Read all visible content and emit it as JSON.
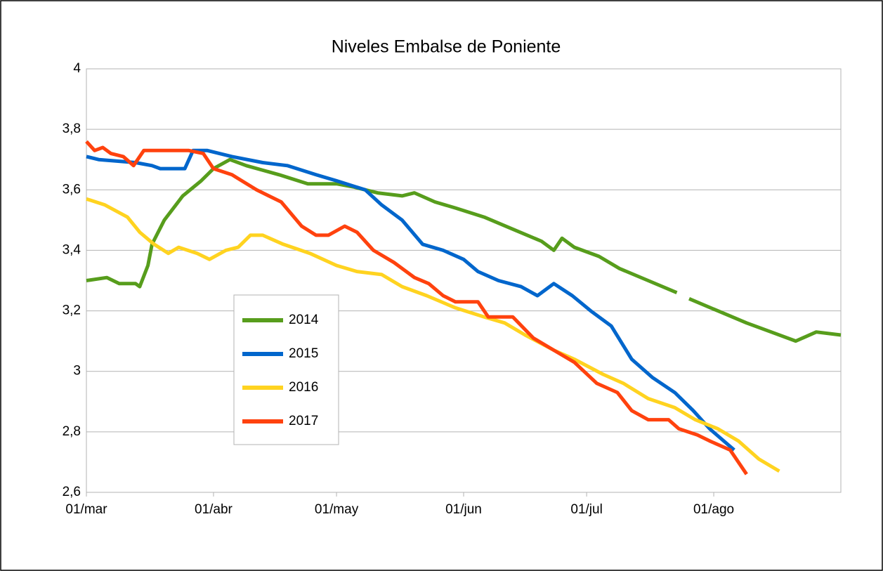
{
  "chart_data": {
    "type": "line",
    "title": "Niveles Embalse de Poniente",
    "xlim": [
      0,
      184
    ],
    "xticks": [
      {
        "value": 0,
        "label": "01/mar"
      },
      {
        "value": 31,
        "label": "01/abr"
      },
      {
        "value": 61,
        "label": "01/may"
      },
      {
        "value": 92,
        "label": "01/jun"
      },
      {
        "value": 122,
        "label": "01/jul"
      },
      {
        "value": 153,
        "label": "01/ago"
      }
    ],
    "ylim": [
      2.6,
      4
    ],
    "yticks": [
      {
        "value": 2.6,
        "label": "2,6"
      },
      {
        "value": 2.8,
        "label": "2,8"
      },
      3,
      {
        "value": 3.2,
        "label": "3,2"
      },
      {
        "value": 3.4,
        "label": "3,4"
      },
      {
        "value": 3.6,
        "label": "3,6"
      },
      {
        "value": 3.8,
        "label": "3,8"
      },
      4
    ],
    "grid": true,
    "series": [
      {
        "name": "2014",
        "color": "#579d1c",
        "x": [
          0,
          5,
          8,
          12,
          13,
          15,
          16,
          19,
          23.5,
          28,
          31,
          35,
          39,
          47,
          54,
          61,
          65,
          71,
          77,
          80,
          85,
          90,
          97,
          104,
          111,
          114,
          116,
          119,
          125,
          130,
          137,
          144,
          145.5,
          147,
          154,
          161,
          167,
          173,
          178,
          184
        ],
        "values": [
          3.3,
          3.31,
          3.29,
          3.29,
          3.28,
          3.35,
          3.42,
          3.5,
          3.58,
          3.63,
          3.67,
          3.7,
          3.68,
          3.65,
          3.62,
          3.62,
          3.61,
          3.59,
          3.58,
          3.59,
          3.56,
          3.54,
          3.51,
          3.47,
          3.43,
          3.4,
          3.44,
          3.41,
          3.38,
          3.34,
          3.3,
          3.26,
          null,
          3.24,
          3.2,
          3.16,
          3.13,
          3.1,
          3.13,
          3.12
        ]
      },
      {
        "name": "2015",
        "color": "#0066cc",
        "x": [
          0,
          3,
          12,
          16,
          18,
          24,
          26,
          29.5,
          35.5,
          43,
          49,
          56,
          61,
          68,
          72,
          77,
          82,
          87,
          92,
          95.5,
          100.5,
          106,
          110,
          114,
          118.5,
          123,
          128,
          133,
          138,
          143.5,
          148,
          152,
          158
        ],
        "values": [
          3.71,
          3.7,
          3.69,
          3.68,
          3.67,
          3.67,
          3.73,
          3.73,
          3.71,
          3.69,
          3.68,
          3.65,
          3.63,
          3.6,
          3.55,
          3.5,
          3.42,
          3.4,
          3.37,
          3.33,
          3.3,
          3.28,
          3.25,
          3.29,
          3.25,
          3.2,
          3.15,
          3.04,
          2.98,
          2.93,
          2.87,
          2.81,
          2.74
        ]
      },
      {
        "name": "2016",
        "color": "#ffd320",
        "x": [
          0,
          4.5,
          10,
          13,
          16.5,
          20,
          22.5,
          27,
          30,
          34,
          37,
          40,
          43,
          48,
          54.5,
          61,
          66,
          72,
          77,
          83,
          90,
          97,
          102,
          107,
          114,
          119,
          126,
          131,
          137,
          143.5,
          148.5,
          154,
          159,
          164,
          169
        ],
        "values": [
          3.57,
          3.55,
          3.51,
          3.46,
          3.42,
          3.39,
          3.41,
          3.39,
          3.37,
          3.4,
          3.41,
          3.45,
          3.45,
          3.42,
          3.39,
          3.35,
          3.33,
          3.32,
          3.28,
          3.25,
          3.21,
          3.18,
          3.16,
          3.12,
          3.07,
          3.04,
          2.99,
          2.96,
          2.91,
          2.88,
          2.84,
          2.81,
          2.77,
          2.71,
          2.67
        ]
      },
      {
        "name": "2017",
        "color": "#ff420e",
        "x": [
          0,
          2,
          4,
          6,
          9,
          11.5,
          14,
          20,
          25,
          28.5,
          31,
          35.5,
          41.5,
          47.5,
          52.5,
          56,
          59,
          63,
          66,
          70,
          75,
          80,
          83.5,
          87,
          90,
          95.5,
          98,
          104,
          109,
          114,
          119,
          124.5,
          129.5,
          133,
          137,
          142,
          144.5,
          149,
          152,
          157,
          161
        ],
        "values": [
          3.76,
          3.73,
          3.74,
          3.72,
          3.71,
          3.68,
          3.73,
          3.73,
          3.73,
          3.72,
          3.67,
          3.65,
          3.6,
          3.56,
          3.48,
          3.45,
          3.45,
          3.48,
          3.46,
          3.4,
          3.36,
          3.31,
          3.29,
          3.25,
          3.23,
          3.23,
          3.18,
          3.18,
          3.11,
          3.07,
          3.03,
          2.96,
          2.93,
          2.87,
          2.84,
          2.84,
          2.81,
          2.79,
          2.77,
          2.74,
          2.66
        ]
      }
    ]
  }
}
